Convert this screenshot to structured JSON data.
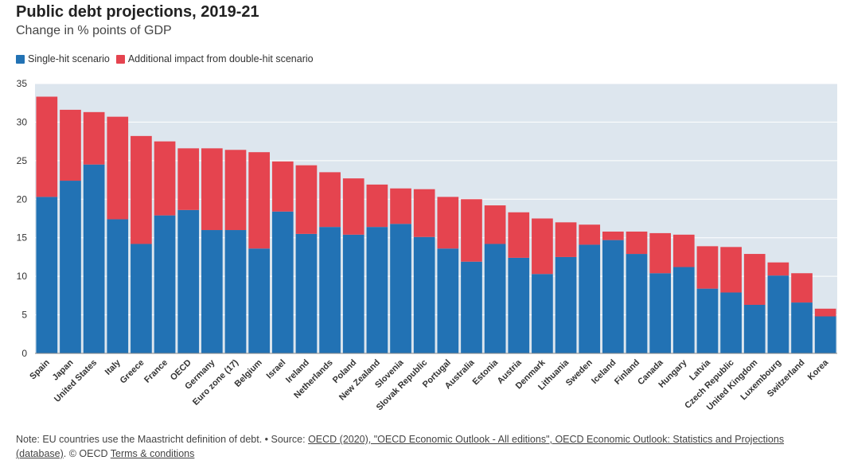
{
  "title": "Public debt projections, 2019-21",
  "subtitle": "Change in % points of GDP",
  "legend": [
    {
      "label": "Single-hit scenario",
      "color": "#2272b4"
    },
    {
      "label": "Additional impact from double-hit scenario",
      "color": "#e5444f"
    }
  ],
  "footer": {
    "note": "Note: EU countries use the Maastricht definition of debt. • Source: ",
    "source_link": "OECD (2020), \"OECD Economic Outlook - All editions\", OECD Economic Outlook: Statistics and Projections (database)",
    "separator": ". © OECD ",
    "terms_link": "Terms & conditions"
  },
  "colors": {
    "plot_background": "#dde6ee",
    "single": "#2272b4",
    "additional": "#e5444f",
    "gridline": "#ffffff"
  },
  "chart_data": {
    "type": "bar",
    "stacked": true,
    "title": "Public debt projections, 2019-21",
    "subtitle": "Change in % points of GDP",
    "ylim": [
      0,
      35
    ],
    "yticks": [
      0,
      5,
      10,
      15,
      20,
      25,
      30,
      35
    ],
    "grid": true,
    "legend_position": "top-left",
    "categories": [
      "Spain",
      "Japan",
      "United States",
      "Italy",
      "Greece",
      "France",
      "OECD",
      "Germany",
      "Euro zone (17)",
      "Belgium",
      "Israel",
      "Ireland",
      "Netherlands",
      "Poland",
      "New Zealand",
      "Slovenia",
      "Slovak Republic",
      "Portugal",
      "Australia",
      "Estonia",
      "Austria",
      "Denmark",
      "Lithuania",
      "Sweden",
      "Iceland",
      "Finland",
      "Canada",
      "Hungary",
      "Latvia",
      "Czech Republic",
      "United Kingdom",
      "Luxembourg",
      "Switzerland",
      "Korea"
    ],
    "series": [
      {
        "name": "Single-hit scenario",
        "values": [
          20.3,
          22.4,
          24.5,
          17.4,
          14.2,
          17.9,
          18.6,
          16.0,
          16.0,
          13.6,
          18.4,
          15.5,
          16.4,
          15.4,
          16.4,
          16.8,
          15.1,
          13.6,
          11.9,
          14.2,
          12.4,
          10.3,
          12.5,
          14.1,
          14.7,
          12.9,
          10.4,
          11.2,
          8.4,
          7.9,
          6.3,
          10.1,
          6.6,
          4.8
        ]
      },
      {
        "name": "Additional impact from double-hit scenario",
        "values": [
          13.0,
          9.2,
          6.8,
          13.3,
          14.0,
          9.6,
          8.0,
          10.6,
          10.4,
          12.5,
          6.5,
          8.9,
          7.1,
          7.3,
          5.5,
          4.6,
          6.2,
          6.7,
          8.1,
          5.0,
          5.9,
          7.2,
          4.5,
          2.6,
          1.1,
          2.9,
          5.2,
          4.2,
          5.5,
          5.9,
          6.6,
          1.7,
          3.8,
          1.0
        ]
      }
    ]
  }
}
